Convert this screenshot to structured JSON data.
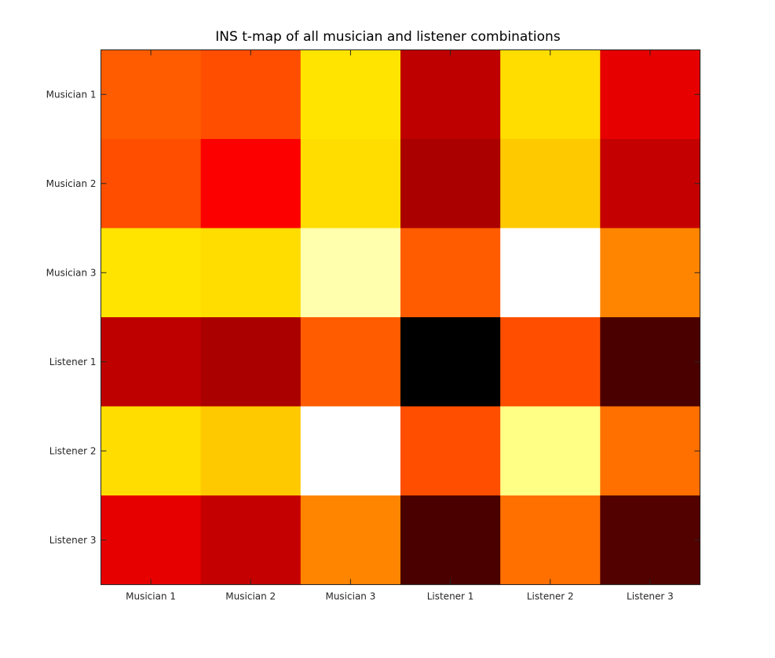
{
  "chart_data": {
    "type": "heatmap",
    "title": "INS t-map of all musician and listener combinations",
    "xlabel": "",
    "ylabel": "",
    "colormap": "hot",
    "x_categories": [
      "Musician 1",
      "Musician 2",
      "Musician 3",
      "Listener 1",
      "Listener 2",
      "Listener 3"
    ],
    "y_categories": [
      "Musician 1",
      "Musician 2",
      "Musician 3",
      "Listener 1",
      "Listener 2",
      "Listener 3"
    ],
    "values": [
      [
        0.51,
        0.49,
        0.71,
        0.28,
        0.7,
        0.34
      ],
      [
        0.49,
        0.37,
        0.7,
        0.25,
        0.67,
        0.29
      ],
      [
        0.71,
        0.7,
        0.92,
        0.51,
        1.0,
        0.57
      ],
      [
        0.28,
        0.25,
        0.51,
        0.0,
        0.49,
        0.11
      ],
      [
        0.7,
        0.67,
        1.0,
        0.49,
        0.88,
        0.54
      ],
      [
        0.34,
        0.29,
        0.57,
        0.11,
        0.54,
        0.12
      ]
    ],
    "clim": [
      0,
      1
    ],
    "grid": false,
    "legend": "none"
  }
}
